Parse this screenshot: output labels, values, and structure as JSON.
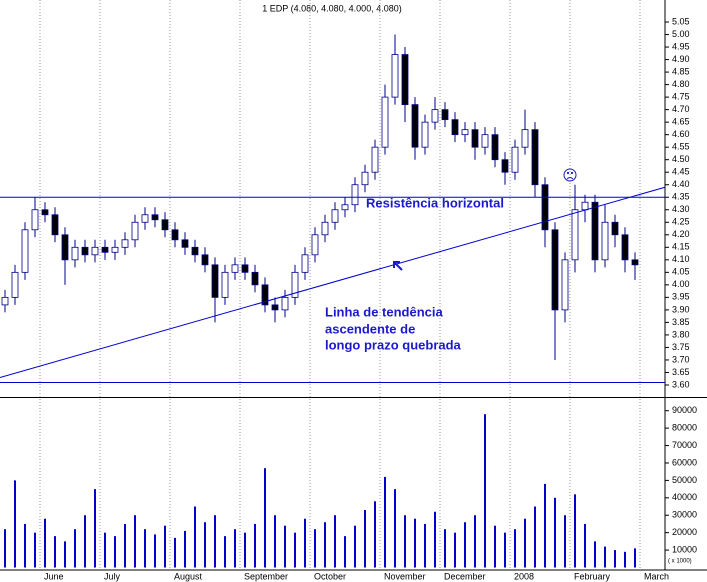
{
  "chart_data": [
    {
      "type": "candlestick",
      "title": "1 EDP (4.080, 4.080, 4.000, 4.080)",
      "categories": [
        null,
        null,
        null,
        null,
        "June",
        null,
        null,
        null,
        null,
        null,
        "July",
        null,
        null,
        null,
        null,
        null,
        null,
        "August",
        null,
        null,
        null,
        null,
        null,
        null,
        "September",
        null,
        null,
        null,
        null,
        null,
        null,
        "October",
        null,
        null,
        null,
        null,
        null,
        null,
        "November",
        null,
        null,
        null,
        null,
        null,
        "December",
        null,
        null,
        null,
        null,
        null,
        null,
        "2008",
        null,
        null,
        null,
        null,
        null,
        "February",
        null,
        null,
        null,
        null,
        null,
        null,
        "March"
      ],
      "open": [
        3.92,
        3.95,
        4.05,
        4.22,
        4.3,
        4.28,
        4.2,
        4.1,
        4.15,
        4.12,
        4.15,
        4.13,
        4.15,
        4.18,
        4.25,
        4.28,
        4.26,
        4.22,
        4.18,
        4.15,
        4.12,
        4.08,
        3.95,
        4.05,
        4.08,
        4.05,
        4.0,
        3.92,
        3.9,
        3.95,
        4.05,
        4.12,
        4.2,
        4.25,
        4.3,
        4.32,
        4.4,
        4.45,
        4.55,
        4.75,
        4.92,
        4.72,
        4.55,
        4.65,
        4.7,
        4.66,
        4.6,
        4.62,
        4.55,
        4.6,
        4.5,
        4.45,
        4.55,
        4.62,
        4.4,
        4.22,
        3.9,
        4.1,
        4.3,
        4.33,
        4.1,
        4.25,
        4.2,
        4.1,
        null
      ],
      "high": [
        3.98,
        4.08,
        4.25,
        4.35,
        4.33,
        4.31,
        4.23,
        4.18,
        4.18,
        4.18,
        4.18,
        4.18,
        4.21,
        4.28,
        4.31,
        4.31,
        4.29,
        4.25,
        4.21,
        4.18,
        4.15,
        4.11,
        4.08,
        4.11,
        4.11,
        4.08,
        4.03,
        3.95,
        3.98,
        4.08,
        4.15,
        4.23,
        4.28,
        4.33,
        4.35,
        4.43,
        4.48,
        4.58,
        4.8,
        5.0,
        4.95,
        4.75,
        4.68,
        4.75,
        4.73,
        4.69,
        4.65,
        4.65,
        4.63,
        4.63,
        4.53,
        4.58,
        4.7,
        4.65,
        4.43,
        4.25,
        4.13,
        4.4,
        4.36,
        4.36,
        4.32,
        4.28,
        4.23,
        4.13,
        null
      ],
      "low": [
        3.89,
        3.92,
        4.02,
        4.19,
        4.25,
        4.17,
        4.0,
        4.07,
        4.09,
        4.09,
        4.1,
        4.1,
        4.12,
        4.15,
        4.22,
        4.23,
        4.19,
        4.15,
        4.12,
        4.09,
        4.05,
        3.85,
        3.92,
        4.02,
        4.02,
        3.97,
        3.89,
        3.85,
        3.87,
        3.92,
        4.02,
        4.09,
        4.17,
        4.22,
        4.27,
        4.29,
        4.37,
        4.42,
        4.52,
        4.72,
        4.65,
        4.5,
        4.52,
        4.62,
        4.63,
        4.57,
        4.57,
        4.5,
        4.52,
        4.47,
        4.4,
        4.42,
        4.52,
        4.35,
        4.15,
        3.7,
        3.85,
        4.05,
        4.25,
        4.05,
        4.07,
        4.15,
        4.05,
        4.02,
        null
      ],
      "close": [
        3.95,
        4.05,
        4.22,
        4.3,
        4.28,
        4.2,
        4.1,
        4.15,
        4.12,
        4.15,
        4.13,
        4.15,
        4.18,
        4.25,
        4.28,
        4.26,
        4.22,
        4.18,
        4.15,
        4.12,
        4.08,
        3.95,
        4.05,
        4.08,
        4.05,
        4.0,
        3.92,
        3.9,
        3.95,
        4.05,
        4.12,
        4.2,
        4.25,
        4.3,
        4.32,
        4.4,
        4.45,
        4.55,
        4.75,
        4.92,
        4.72,
        4.55,
        4.65,
        4.7,
        4.66,
        4.6,
        4.62,
        4.55,
        4.6,
        4.5,
        4.45,
        4.55,
        4.62,
        4.4,
        4.22,
        3.9,
        4.1,
        4.3,
        4.33,
        4.1,
        4.25,
        4.2,
        4.1,
        4.08,
        null
      ],
      "up_color": "#ffffff",
      "down_color": "#000000",
      "edge_color": "#00008b",
      "ylim": [
        3.55,
        5.1
      ],
      "yticks": [
        {
          "value": 3.6,
          "label": "3.60"
        },
        {
          "value": 3.65,
          "label": "3.65"
        },
        {
          "value": 3.7,
          "label": "3.70"
        },
        {
          "value": 3.75,
          "label": "3.75"
        },
        {
          "value": 3.8,
          "label": "3.80"
        },
        {
          "value": 3.85,
          "label": "3.85"
        },
        {
          "value": 3.9,
          "label": "3.90"
        },
        {
          "value": 3.95,
          "label": "3.95"
        },
        {
          "value": 4,
          "label": "4.00"
        },
        {
          "value": 4.05,
          "label": "4.05"
        },
        {
          "value": 4.1,
          "label": "4.10"
        },
        {
          "value": 4.15,
          "label": "4.15"
        },
        {
          "value": 4.2,
          "label": "4.20"
        },
        {
          "value": 4.25,
          "label": "4.25"
        },
        {
          "value": 4.3,
          "label": "4.30"
        },
        {
          "value": 4.35,
          "label": "4.35"
        },
        {
          "value": 4.4,
          "label": "4.40"
        },
        {
          "value": 4.45,
          "label": "4.45"
        },
        {
          "value": 4.5,
          "label": "4.50"
        },
        {
          "value": 4.55,
          "label": "4.55"
        },
        {
          "value": 4.6,
          "label": "4.60"
        },
        {
          "value": 4.65,
          "label": "4.65"
        },
        {
          "value": 4.7,
          "label": "4.70"
        },
        {
          "value": 4.75,
          "label": "4.75"
        },
        {
          "value": 4.8,
          "label": "4.80"
        },
        {
          "value": 4.85,
          "label": "4.85"
        },
        {
          "value": 4.9,
          "label": "4.90"
        },
        {
          "value": 4.95,
          "label": "4.95"
        },
        {
          "value": 5,
          "label": "5.00"
        },
        {
          "value": 5.05,
          "label": "5.05"
        }
      ],
      "hlines": [
        4.35,
        3.61
      ],
      "trendline": {
        "x": [
          -0.5,
          66
        ],
        "y": [
          3.63,
          4.39
        ]
      },
      "line_color": "#0000cd",
      "annotations": [
        "Resistência horizontal",
        "Linha de tendência",
        "ascendente de",
        "longo prazo quebrada"
      ]
    },
    {
      "type": "bar",
      "values": [
        22000,
        50000,
        25000,
        20000,
        28000,
        18000,
        15000,
        22000,
        30000,
        45000,
        20000,
        18000,
        25000,
        30000,
        22000,
        19000,
        24000,
        17000,
        21000,
        35000,
        26000,
        30000,
        18000,
        22000,
        20000,
        25000,
        57000,
        30000,
        24000,
        20000,
        28000,
        22000,
        26000,
        30000,
        18000,
        24000,
        33000,
        38000,
        52000,
        45000,
        30000,
        28000,
        25000,
        32000,
        22000,
        20000,
        26000,
        30000,
        88000,
        24000,
        20000,
        22000,
        28000,
        35000,
        48000,
        40000,
        30000,
        42000,
        25000,
        15000,
        12000,
        10000,
        9000,
        11000,
        null
      ],
      "color": "#0000cd",
      "ylim": [
        0,
        95000
      ],
      "yticks": [
        10000,
        20000,
        30000,
        40000,
        50000,
        60000,
        70000,
        80000,
        90000
      ],
      "note": "( x 1000)"
    }
  ]
}
